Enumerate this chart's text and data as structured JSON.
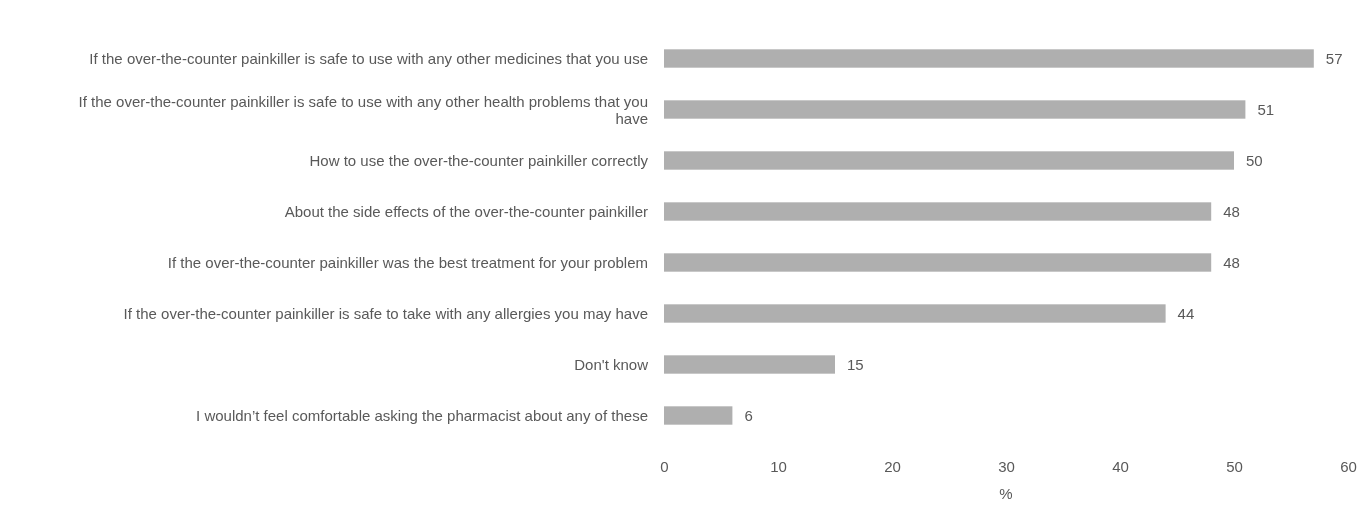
{
  "chart_data": {
    "type": "bar",
    "orientation": "horizontal",
    "xlabel": "%",
    "categories": [
      "If the over-the-counter painkiller is safe to use with any other medicines that you use",
      "If the over-the-counter painkiller is safe to use with any other health problems that you have",
      "How to use the over-the-counter painkiller correctly",
      "About the side effects of the over-the-counter painkiller",
      "If the over-the-counter painkiller was the best treatment for your problem",
      "If the over-the-counter painkiller is safe to take with any allergies you may have",
      "Don't know",
      "I wouldn’t feel comfortable asking the pharmacist about any of these"
    ],
    "values": [
      57,
      51,
      50,
      48,
      48,
      44,
      15,
      6
    ],
    "color": "#afafaf",
    "xlim": [
      0,
      60
    ],
    "xticks": [
      0,
      10,
      20,
      30,
      40,
      50,
      60
    ],
    "data_labels": true,
    "grid": false
  }
}
